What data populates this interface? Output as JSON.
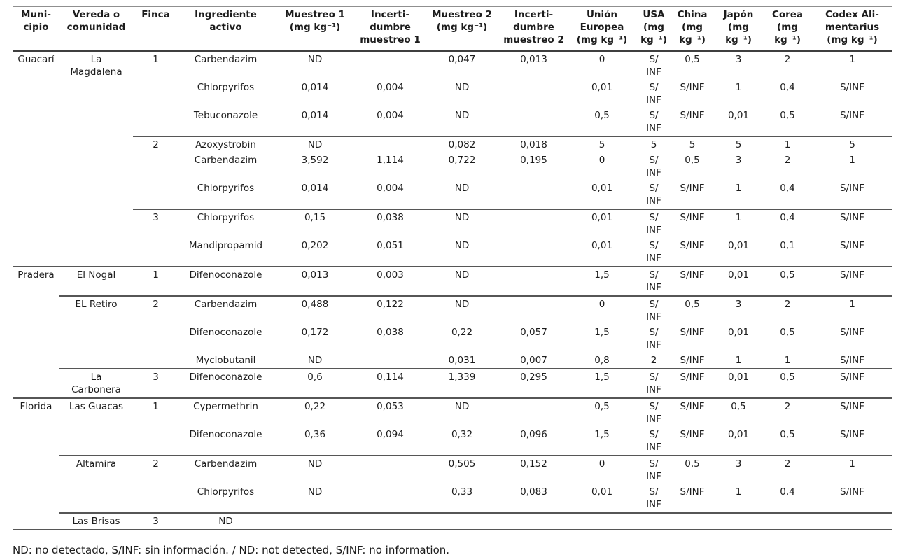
{
  "page": {
    "background_color": "#ffffff",
    "text_color": "#1c1c1c",
    "rule_color_dark": "#565656",
    "rule_color_light": "#8f8f8f"
  },
  "table": {
    "column_keys": [
      "municipio",
      "vereda",
      "finca",
      "ingrediente",
      "muestreo1",
      "incertidumbre1",
      "muestreo2",
      "incertidumbre2",
      "union-europea",
      "usa",
      "china",
      "japon",
      "corea",
      "codex"
    ],
    "headers": [
      "Muni-\ncipio",
      "Vereda o\ncomunidad",
      "Finca",
      "Ingrediente\nactivo",
      "Muestreo 1\n(mg kg⁻¹)",
      "Incerti-\ndumbre\nmuestreo 1",
      "Muestreo 2\n(mg kg⁻¹)",
      "Incerti-\ndumbre\nmuestreo 2",
      "Unión\nEuropea\n(mg kg⁻¹)",
      "USA\n(mg\nkg⁻¹)",
      "China\n(mg\nkg⁻¹)",
      "Japón\n(mg\nkg⁻¹)",
      "Corea\n(mg\nkg⁻¹)",
      "Codex Ali-\nmentarius\n(mg kg⁻¹)"
    ],
    "rows": [
      {
        "divider_before": "none",
        "cells": [
          "Guacarí",
          "La\nMagdalena",
          "1",
          "Carbendazim",
          "ND",
          "",
          "0,047",
          "0,013",
          "0",
          "S/\nINF",
          "0,5",
          "3",
          "2",
          "1"
        ]
      },
      {
        "divider_before": "none",
        "cells": [
          "",
          "",
          "",
          "Chlorpyrifos",
          "0,014",
          "0,004",
          "ND",
          "",
          "0,01",
          "S/\nINF",
          "S/INF",
          "1",
          "0,4",
          "S/INF"
        ]
      },
      {
        "divider_before": "none",
        "cells": [
          "",
          "",
          "",
          "Tebuconazole",
          "0,014",
          "0,004",
          "ND",
          "",
          "0,5",
          "S/\nINF",
          "S/INF",
          "0,01",
          "0,5",
          "S/INF"
        ]
      },
      {
        "divider_before": "finca",
        "cells": [
          "",
          "",
          "2",
          "Azoxystrobin",
          "ND",
          "",
          "0,082",
          "0,018",
          "5",
          "5",
          "5",
          "5",
          "1",
          "5"
        ]
      },
      {
        "divider_before": "none",
        "cells": [
          "",
          "",
          "",
          "Carbendazim",
          "3,592",
          "1,114",
          "0,722",
          "0,195",
          "0",
          "S/\nINF",
          "0,5",
          "3",
          "2",
          "1"
        ]
      },
      {
        "divider_before": "none",
        "cells": [
          "",
          "",
          "",
          "Chlorpyrifos",
          "0,014",
          "0,004",
          "ND",
          "",
          "0,01",
          "S/\nINF",
          "S/INF",
          "1",
          "0,4",
          "S/INF"
        ]
      },
      {
        "divider_before": "finca",
        "cells": [
          "",
          "",
          "3",
          "Chlorpyrifos",
          "0,15",
          "0,038",
          "ND",
          "",
          "0,01",
          "S/\nINF",
          "S/INF",
          "1",
          "0,4",
          "S/INF"
        ]
      },
      {
        "divider_before": "none",
        "cells": [
          "",
          "",
          "",
          "Mandipropamid",
          "0,202",
          "0,051",
          "ND",
          "",
          "0,01",
          "S/\nINF",
          "S/INF",
          "0,01",
          "0,1",
          "S/INF"
        ]
      },
      {
        "divider_before": "full",
        "cells": [
          "Pradera",
          "El Nogal",
          "1",
          "Difenoconazole",
          "0,013",
          "0,003",
          "ND",
          "",
          "1,5",
          "S/\nINF",
          "S/INF",
          "0,01",
          "0,5",
          "S/INF"
        ]
      },
      {
        "divider_before": "vereda",
        "cells": [
          "",
          "EL Retiro",
          "2",
          "Carbendazim",
          "0,488",
          "0,122",
          "ND",
          "",
          "0",
          "S/\nINF",
          "0,5",
          "3",
          "2",
          "1"
        ]
      },
      {
        "divider_before": "none",
        "cells": [
          "",
          "",
          "",
          "Difenoconazole",
          "0,172",
          "0,038",
          "0,22",
          "0,057",
          "1,5",
          "S/\nINF",
          "S/INF",
          "0,01",
          "0,5",
          "S/INF"
        ]
      },
      {
        "divider_before": "none",
        "cells": [
          "",
          "",
          "",
          "Myclobutanil",
          "ND",
          "",
          "0,031",
          "0,007",
          "0,8",
          "2",
          "S/INF",
          "1",
          "1",
          "S/INF"
        ]
      },
      {
        "divider_before": "vereda",
        "cells": [
          "",
          "La\nCarbonera",
          "3",
          "Difenoconazole",
          "0,6",
          "0,114",
          "1,339",
          "0,295",
          "1,5",
          "S/\nINF",
          "S/INF",
          "0,01",
          "0,5",
          "S/INF"
        ]
      },
      {
        "divider_before": "full",
        "cells": [
          "Florida",
          "Las Guacas",
          "1",
          "Cypermethrin",
          "0,22",
          "0,053",
          "ND",
          "",
          "0,5",
          "S/\nINF",
          "S/INF",
          "0,5",
          "2",
          "S/INF"
        ]
      },
      {
        "divider_before": "none",
        "cells": [
          "",
          "",
          "",
          "Difenoconazole",
          "0,36",
          "0,094",
          "0,32",
          "0,096",
          "1,5",
          "S/\nINF",
          "S/INF",
          "0,01",
          "0,5",
          "S/INF"
        ]
      },
      {
        "divider_before": "vereda",
        "cells": [
          "",
          "Altamira",
          "2",
          "Carbendazim",
          "ND",
          "",
          "0,505",
          "0,152",
          "0",
          "S/\nINF",
          "0,5",
          "3",
          "2",
          "1"
        ]
      },
      {
        "divider_before": "none",
        "cells": [
          "",
          "",
          "",
          "Chlorpyrifos",
          "ND",
          "",
          "0,33",
          "0,083",
          "0,01",
          "S/\nINF",
          "S/INF",
          "1",
          "0,4",
          "S/INF"
        ]
      },
      {
        "divider_before": "vereda",
        "cells": [
          "",
          "Las Brisas",
          "3",
          "ND",
          "",
          "",
          "",
          "",
          "",
          "",
          "",
          "",
          "",
          ""
        ]
      }
    ]
  },
  "footnote": "ND: no detectado, S/INF: sin información. / ND: not detected, S/INF: no information."
}
